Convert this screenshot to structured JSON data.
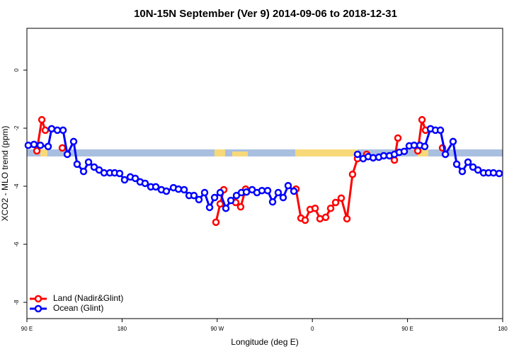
{
  "chart_data": {
    "type": "line",
    "title": "10N-15N September (Ver 9)   2014-09-06 to 2018-12-31",
    "xlabel": "Longitude (deg E)",
    "ylabel": "XCO2 - MLO trend (ppm)",
    "xlim": [
      90,
      540
    ],
    "ylim": [
      -8.56,
      1.44
    ],
    "xticks": [
      {
        "value": 90,
        "label": "90 E"
      },
      180,
      {
        "value": 270,
        "label": "90 W"
      },
      {
        "value": 360,
        "label": "0"
      },
      {
        "value": 450,
        "label": "90 E"
      },
      {
        "value": 540,
        "label": "180"
      }
    ],
    "yticks": [
      0,
      -2,
      -4,
      -6,
      -8
    ],
    "legend": "bottom-left",
    "series": [
      {
        "name": "Land (Nadir&Glint)",
        "color": "#ff0000",
        "x": [
          99.4,
          104.1,
          107.4,
          null,
          123.5,
          null,
          268.8,
          272.8,
          276.2,
          null,
          287.5,
          292.2,
          296.9,
          null,
          344.5,
          349.2,
          353.2,
          357.9,
          362.6,
          367.2,
          372.6,
          377.3,
          382.0,
          387.3,
          392.7,
          398.0,
          402.7,
          null,
          411.4,
          null,
          437.6,
          440.9,
          null,
          459.7,
          463.7,
          467.0,
          null,
          483.1
        ],
        "values": [
          -2.78,
          -1.71,
          -2.07,
          null,
          -2.68,
          null,
          -5.24,
          -4.61,
          -4.12,
          null,
          -4.56,
          -4.71,
          -4.1,
          null,
          -4.1,
          -5.1,
          -5.17,
          -4.8,
          -4.76,
          -5.12,
          -5.07,
          -4.76,
          -4.56,
          -4.41,
          -5.12,
          -3.59,
          -3.05,
          null,
          -2.9,
          null,
          -3.1,
          -2.34,
          null,
          -2.78,
          -1.71,
          -2.07,
          null,
          -2.68
        ]
      },
      {
        "name": "Ocean (Glint)",
        "color": "#0000ff",
        "x": [
          91.3,
          96.7,
          102.7,
          110.1,
          113.4,
          118.8,
          124.2,
          128.2,
          134.2,
          137.5,
          143.6,
          148.3,
          153.6,
          158.3,
          163.0,
          168.4,
          173.0,
          177.7,
          182.4,
          187.8,
          192.5,
          197.1,
          201.8,
          207.2,
          211.9,
          217.2,
          221.9,
          228.6,
          233.3,
          238.7,
          243.4,
          248.0,
          252.7,
          258.1,
          262.8,
          267.5,
          272.8,
          278.2,
          282.9,
          288.2,
          292.9,
          297.6,
          303.0,
          307.6,
          312.3,
          317.7,
          322.4,
          327.7,
          332.4,
          337.1,
          342.5,
          null,
          402.7,
          408.1,
          412.8,
          417.5,
          422.8,
          427.5,
          432.9,
          437.6,
          442.2,
          446.9,
          451.6,
          456.3,
          461.7,
          466.3,
          471.7,
          476.4,
          481.1,
          485.8,
          493.1,
          496.5,
          501.8,
          507.2,
          511.9,
          516.6,
          521.9,
          526.6,
          531.3,
          536.7
        ],
        "values": [
          -2.59,
          -2.56,
          -2.59,
          -2.63,
          -2.02,
          -2.07,
          -2.07,
          -2.9,
          -2.46,
          -3.24,
          -3.49,
          -3.17,
          -3.34,
          -3.44,
          -3.54,
          -3.54,
          -3.54,
          -3.56,
          -3.78,
          -3.68,
          -3.73,
          -3.85,
          -3.9,
          -4.02,
          -4.02,
          -4.12,
          -4.17,
          -4.05,
          -4.1,
          -4.12,
          -4.32,
          -4.32,
          -4.46,
          -4.22,
          -4.73,
          -4.39,
          -4.22,
          -4.76,
          -4.49,
          -4.32,
          -4.22,
          -4.2,
          -4.12,
          -4.22,
          -4.15,
          -4.15,
          -4.54,
          -4.22,
          -4.39,
          -3.98,
          -4.17,
          null,
          -2.9,
          -3.05,
          -2.98,
          -3.02,
          -3.0,
          -2.95,
          -2.95,
          -2.9,
          -2.83,
          -2.8,
          -2.61,
          -2.59,
          -2.59,
          -2.63,
          -2.02,
          -2.07,
          -2.07,
          -2.9,
          -2.46,
          -3.24,
          -3.49,
          -3.17,
          -3.34,
          -3.44,
          -3.54,
          -3.54,
          -3.54,
          -3.56
        ]
      }
    ]
  }
}
